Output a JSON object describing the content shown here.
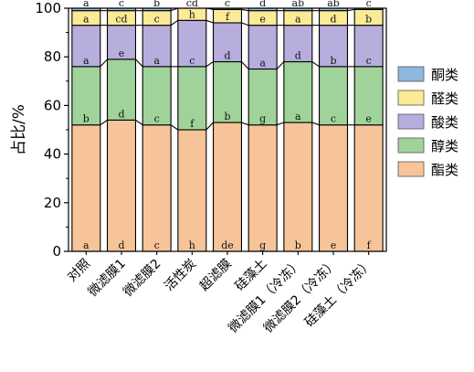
{
  "chart_data": {
    "type": "bar",
    "stacked": true,
    "ylabel": "占比/%",
    "ylim": [
      0,
      100
    ],
    "yticks": [
      0,
      20,
      40,
      60,
      80,
      100
    ],
    "categories": [
      "对照",
      "微滤膜1",
      "微滤膜2",
      "活性炭",
      "超滤膜",
      "硅藻土",
      "微滤膜1（冷冻）",
      "微滤膜2（冷冻）",
      "硅藻土（冷冻）"
    ],
    "series": [
      {
        "name": "酯类",
        "color": "#F7C49A",
        "values": [
          52,
          54,
          52,
          50,
          53,
          52,
          53,
          52,
          52
        ],
        "letters": [
          "a",
          "d",
          "c",
          "h",
          "de",
          "g",
          "b",
          "e",
          "f"
        ]
      },
      {
        "name": "醇类",
        "color": "#9FD39A",
        "values": [
          24,
          25,
          24,
          26,
          25,
          23,
          25,
          24,
          24
        ],
        "letters": [
          "b",
          "d",
          "c",
          "f",
          "b",
          "g",
          "a",
          "c",
          "e"
        ]
      },
      {
        "name": "酸类",
        "color": "#B7AEDD",
        "values": [
          17,
          14,
          17,
          19,
          16,
          18,
          15,
          17,
          17
        ],
        "letters": [
          "a",
          "e",
          "a",
          "c",
          "d",
          "a",
          "d",
          "b",
          "c"
        ]
      },
      {
        "name": "醛类",
        "color": "#FBEA96",
        "values": [
          6,
          6,
          6,
          5,
          5.5,
          6,
          6,
          6,
          6.5
        ],
        "letters": [
          "a",
          "cd",
          "c",
          "h",
          "f",
          "e",
          "a",
          "d",
          "b"
        ]
      },
      {
        "name": "酮类",
        "color": "#8FB8DE",
        "values": [
          1,
          1,
          1,
          0.5,
          0.5,
          1,
          1,
          1,
          0.5
        ],
        "letters": [
          "a",
          "c",
          "b",
          "cd",
          "c",
          "d",
          "ab",
          "ab",
          "c"
        ]
      }
    ],
    "legend_position": "right",
    "grid": false
  }
}
